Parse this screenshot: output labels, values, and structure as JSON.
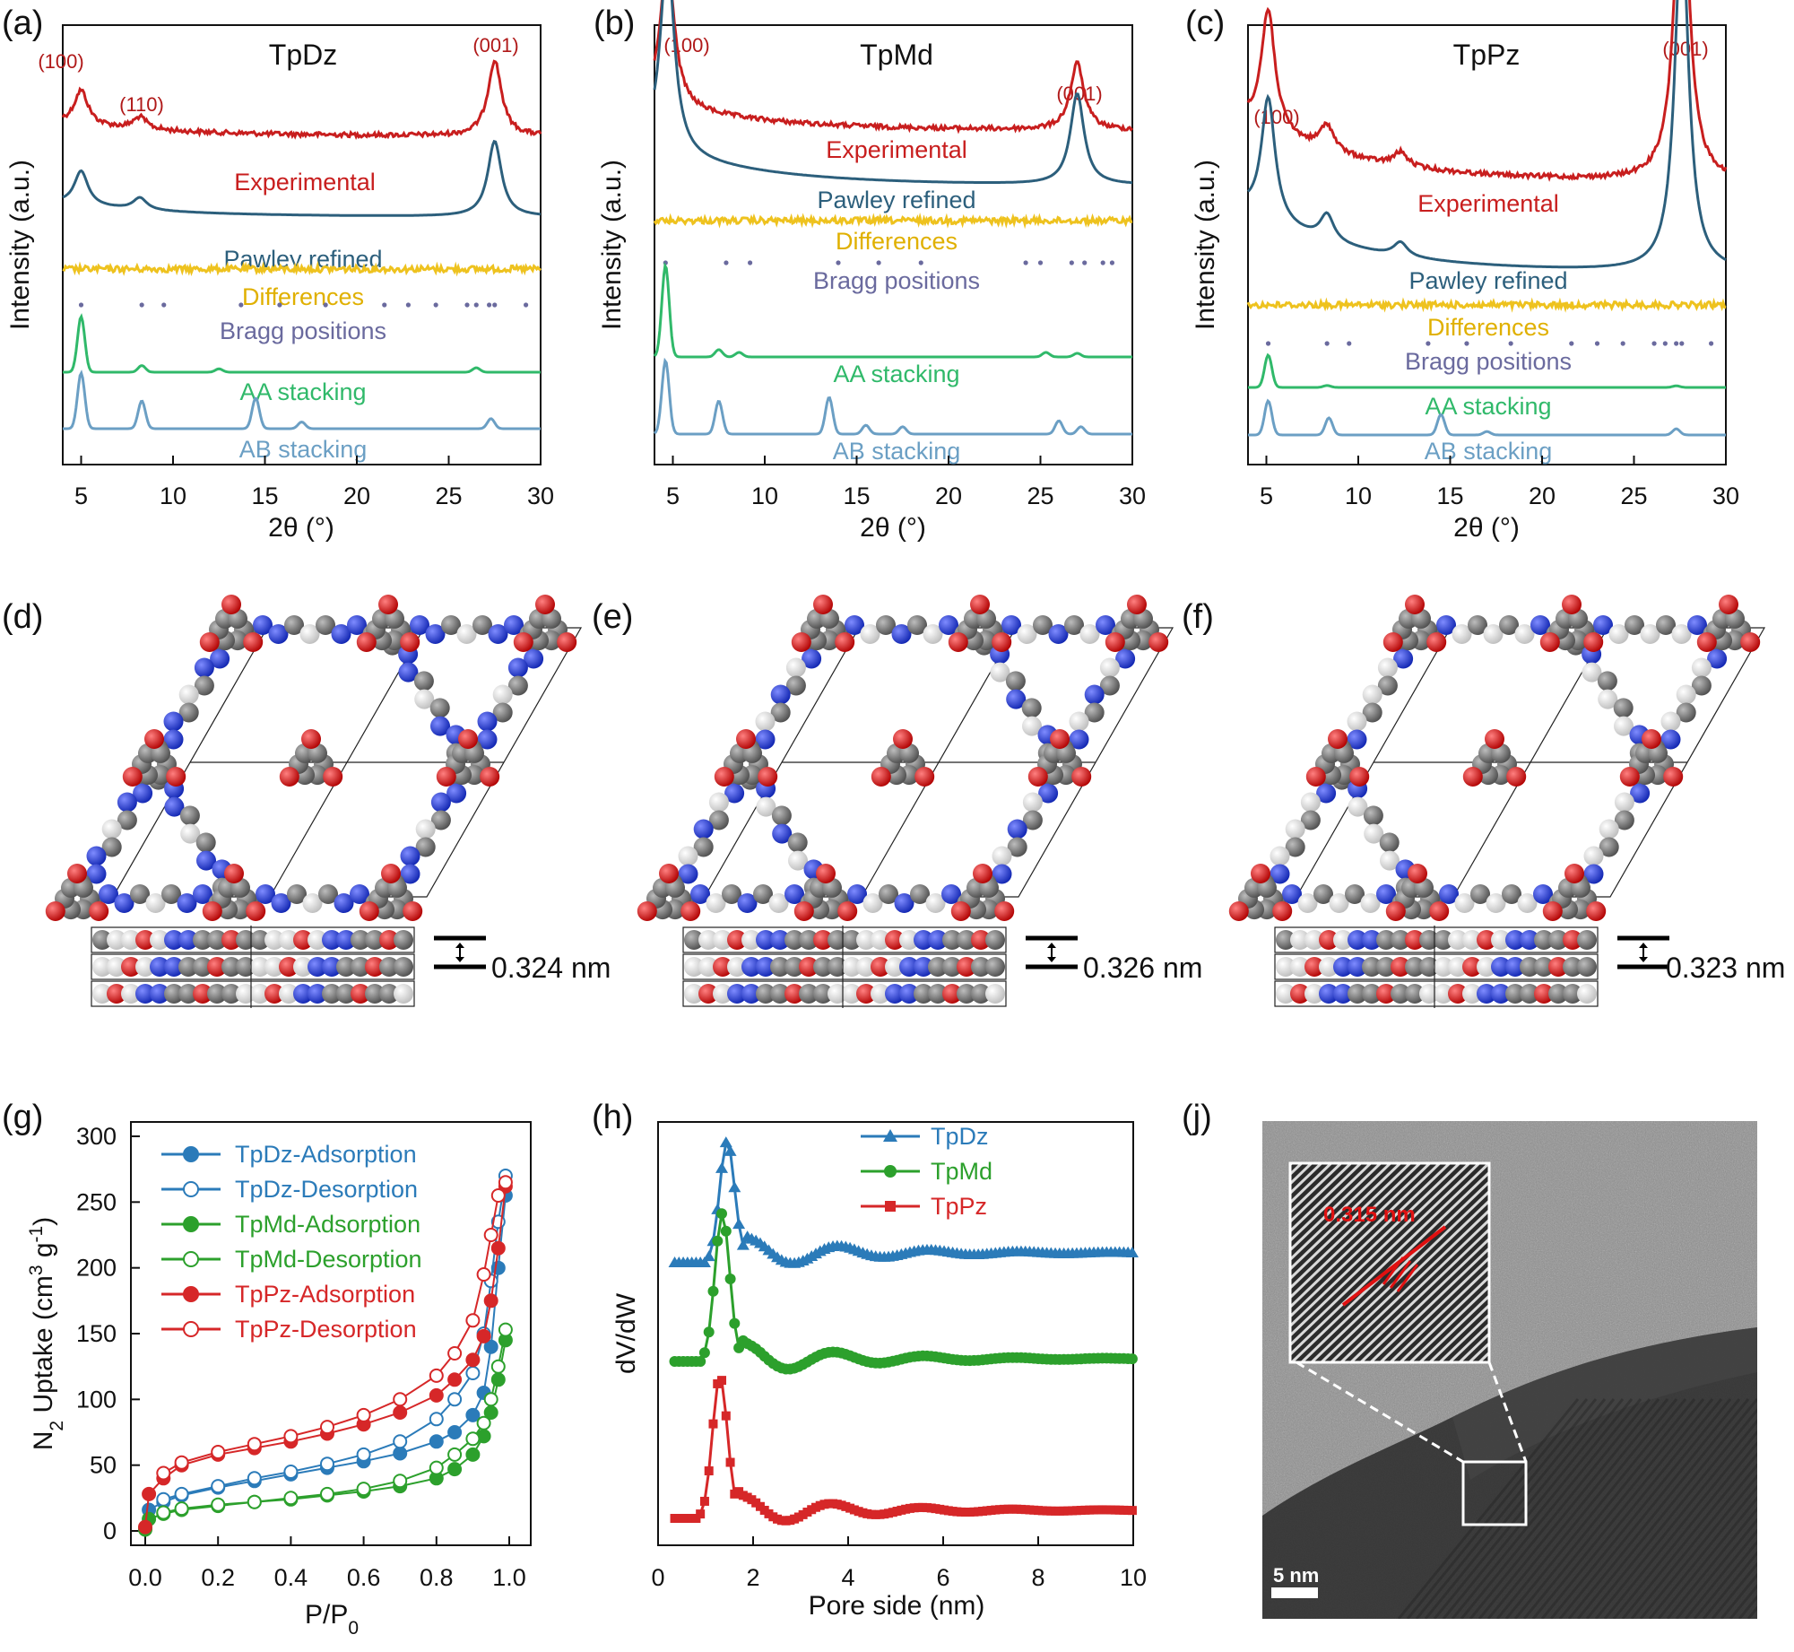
{
  "colors": {
    "experimental": "#c81e1e",
    "pawley": "#2c5f7c",
    "differences": "#eec21e",
    "bragg": "#6a6a9e",
    "aa": "#30b96a",
    "ab": "#6b9fc4",
    "tpdz": "#2b7bb9",
    "tpmd": "#2ca02c",
    "tppz": "#d62728",
    "carbon": "#666666",
    "nitrogen": "#1f3fd6",
    "oxygen": "#e01010",
    "hydrogen": "#f4f4f4"
  },
  "labels": {
    "a": "(a)",
    "b": "(b)",
    "c": "(c)",
    "d": "(d)",
    "e": "(e)",
    "f": "(f)",
    "g": "(g)",
    "h": "(h)",
    "j": "(j)"
  },
  "xrd_common": {
    "ylabel": "Intensity (a.u.)",
    "xlabel": "2θ (°)",
    "xlim": [
      4,
      30
    ],
    "xticks": [
      "5",
      "10",
      "15",
      "20",
      "25",
      "30"
    ],
    "tick_values": [
      5,
      10,
      15,
      20,
      25,
      30
    ]
  },
  "chart_data": [
    {
      "type": "line",
      "title": "TpDz",
      "xlabel": "2θ (°)",
      "ylabel": "Intensity (a.u.)",
      "xlim": [
        4,
        30
      ],
      "series_names": {
        "experimental": "Experimental",
        "pawley": "Pawley refined",
        "differences": "Differences",
        "bragg": "Bragg positions",
        "aa": "AA stacking",
        "ab": "AB stacking"
      },
      "peak_labels": [
        {
          "text": "(100)",
          "x": 5.0
        },
        {
          "text": "(110)",
          "x": 8.3
        },
        {
          "text": "(001)",
          "x": 27.5
        }
      ],
      "peaks": [
        {
          "x": 5.0,
          "h": 1.0
        },
        {
          "x": 8.2,
          "h": 0.35
        },
        {
          "x": 27.5,
          "h": 2.2
        }
      ],
      "aa_peaks": [
        {
          "x": 5.0,
          "h": 1.0
        },
        {
          "x": 8.3,
          "h": 0.12
        },
        {
          "x": 12.5,
          "h": 0.06
        },
        {
          "x": 26.5,
          "h": 0.08
        }
      ],
      "ab_peaks": [
        {
          "x": 5.0,
          "h": 1.0
        },
        {
          "x": 8.3,
          "h": 0.5
        },
        {
          "x": 14.5,
          "h": 0.55
        },
        {
          "x": 17.0,
          "h": 0.12
        },
        {
          "x": 27.3,
          "h": 0.18
        }
      ],
      "bragg_positions": [
        5.0,
        8.3,
        9.5,
        13.7,
        15.8,
        18.3,
        21.5,
        22.8,
        24.3,
        26.0,
        26.5,
        27.2,
        27.5,
        29.2
      ]
    },
    {
      "type": "line",
      "title": "TpMd",
      "xlabel": "2θ (°)",
      "ylabel": "Intensity (a.u.)",
      "xlim": [
        4,
        30
      ],
      "series_names": {
        "experimental": "Experimental",
        "pawley": "Pawley refined",
        "differences": "Differences",
        "bragg": "Bragg positions",
        "aa": "AA stacking",
        "ab": "AB stacking"
      },
      "peak_labels": [
        {
          "text": "(100)",
          "x": 4.7
        },
        {
          "text": "(001)",
          "x": 27.0
        }
      ],
      "peaks": [
        {
          "x": 4.7,
          "h": 1.0
        },
        {
          "x": 27.0,
          "h": 0.45
        }
      ],
      "aa_peaks": [
        {
          "x": 4.6,
          "h": 1.0
        },
        {
          "x": 7.5,
          "h": 0.08
        },
        {
          "x": 8.6,
          "h": 0.05
        },
        {
          "x": 25.3,
          "h": 0.05
        },
        {
          "x": 27.0,
          "h": 0.04
        }
      ],
      "ab_peaks": [
        {
          "x": 4.6,
          "h": 1.0
        },
        {
          "x": 7.5,
          "h": 0.45
        },
        {
          "x": 13.5,
          "h": 0.5
        },
        {
          "x": 15.5,
          "h": 0.12
        },
        {
          "x": 17.5,
          "h": 0.1
        },
        {
          "x": 26.0,
          "h": 0.18
        },
        {
          "x": 27.2,
          "h": 0.1
        }
      ],
      "bragg_positions": [
        4.6,
        7.9,
        9.2,
        14.0,
        16.2,
        18.5,
        24.2,
        25.0,
        26.7,
        27.4,
        28.4,
        28.9
      ]
    },
    {
      "type": "line",
      "title": "TpPz",
      "xlabel": "2θ (°)",
      "ylabel": "Intensity (a.u.)",
      "xlim": [
        4,
        30
      ],
      "series_names": {
        "experimental": "Experimental",
        "pawley": "Pawley refined",
        "differences": "Differences",
        "bragg": "Bragg positions",
        "aa": "AA stacking",
        "ab": "AB stacking"
      },
      "peak_labels": [
        {
          "text": "(100)",
          "x": 5.1
        },
        {
          "text": "(001)",
          "x": 27.6
        }
      ],
      "peaks": [
        {
          "x": 5.1,
          "h": 0.7
        },
        {
          "x": 8.3,
          "h": 0.15
        },
        {
          "x": 12.3,
          "h": 0.08
        },
        {
          "x": 27.6,
          "h": 2.0
        }
      ],
      "aa_peaks": [
        {
          "x": 5.1,
          "h": 1.0
        },
        {
          "x": 8.3,
          "h": 0.06
        },
        {
          "x": 27.3,
          "h": 0.05
        }
      ],
      "ab_peaks": [
        {
          "x": 5.1,
          "h": 1.0
        },
        {
          "x": 8.4,
          "h": 0.5
        },
        {
          "x": 14.5,
          "h": 0.6
        },
        {
          "x": 17.0,
          "h": 0.1
        },
        {
          "x": 27.3,
          "h": 0.18
        }
      ],
      "bragg_positions": [
        5.1,
        8.3,
        9.5,
        13.8,
        15.9,
        18.3,
        21.6,
        23.0,
        24.4,
        26.1,
        26.7,
        27.3,
        27.6,
        29.2
      ]
    },
    {
      "type": "scatter",
      "title": "",
      "xlabel": "P/P0",
      "ylabel": "N2 Uptake (cm3 g-1)",
      "xlim": [
        0,
        1.0
      ],
      "ylim": [
        0,
        300
      ],
      "xticks": [
        "0.0",
        "0.2",
        "0.4",
        "0.6",
        "0.8",
        "1.0"
      ],
      "xtick_values": [
        0.0,
        0.2,
        0.4,
        0.6,
        0.8,
        1.0
      ],
      "yticks": [
        "0",
        "50",
        "100",
        "150",
        "200",
        "250",
        "300"
      ],
      "ytick_values": [
        0,
        50,
        100,
        150,
        200,
        250,
        300
      ],
      "series": [
        {
          "name": "TpDz-Adsorption",
          "color": "#2b7bb9",
          "filled": true,
          "x": [
            0.0,
            0.01,
            0.05,
            0.1,
            0.2,
            0.3,
            0.4,
            0.5,
            0.6,
            0.7,
            0.8,
            0.85,
            0.9,
            0.93,
            0.95,
            0.97,
            0.99
          ],
          "values": [
            2,
            16,
            22,
            27,
            33,
            38,
            43,
            48,
            53,
            59,
            68,
            75,
            88,
            105,
            140,
            200,
            255
          ]
        },
        {
          "name": "TpDz-Desorption",
          "color": "#2b7bb9",
          "filled": false,
          "x": [
            0.99,
            0.97,
            0.95,
            0.93,
            0.9,
            0.85,
            0.8,
            0.7,
            0.6,
            0.5,
            0.4,
            0.3,
            0.2,
            0.1,
            0.05
          ],
          "values": [
            270,
            235,
            190,
            150,
            120,
            100,
            85,
            68,
            58,
            51,
            45,
            40,
            34,
            28,
            24
          ]
        },
        {
          "name": "TpMd-Adsorption",
          "color": "#2ca02c",
          "filled": true,
          "x": [
            0.0,
            0.01,
            0.05,
            0.1,
            0.2,
            0.3,
            0.4,
            0.5,
            0.6,
            0.7,
            0.8,
            0.85,
            0.9,
            0.93,
            0.95,
            0.97,
            0.99
          ],
          "values": [
            1,
            9,
            13,
            16,
            19,
            22,
            24,
            27,
            30,
            34,
            40,
            47,
            58,
            72,
            90,
            115,
            145
          ]
        },
        {
          "name": "TpMd-Desorption",
          "color": "#2ca02c",
          "filled": false,
          "x": [
            0.99,
            0.97,
            0.95,
            0.93,
            0.9,
            0.85,
            0.8,
            0.7,
            0.6,
            0.5,
            0.4,
            0.3,
            0.2,
            0.1,
            0.05
          ],
          "values": [
            153,
            125,
            100,
            82,
            70,
            58,
            48,
            38,
            32,
            28,
            25,
            22,
            20,
            17,
            14
          ]
        },
        {
          "name": "TpPz-Adsorption",
          "color": "#d62728",
          "filled": true,
          "x": [
            0.0,
            0.01,
            0.05,
            0.1,
            0.2,
            0.3,
            0.4,
            0.5,
            0.6,
            0.7,
            0.8,
            0.85,
            0.9,
            0.93,
            0.95,
            0.97,
            0.99
          ],
          "values": [
            3,
            28,
            40,
            50,
            58,
            63,
            68,
            74,
            81,
            90,
            103,
            115,
            130,
            148,
            175,
            215,
            262
          ]
        },
        {
          "name": "TpPz-Desorption",
          "color": "#d62728",
          "filled": false,
          "x": [
            0.99,
            0.97,
            0.95,
            0.93,
            0.9,
            0.85,
            0.8,
            0.7,
            0.6,
            0.5,
            0.4,
            0.3,
            0.2,
            0.1,
            0.05
          ],
          "values": [
            265,
            255,
            225,
            195,
            160,
            135,
            118,
            100,
            88,
            79,
            72,
            66,
            60,
            52,
            44
          ]
        }
      ]
    },
    {
      "type": "line",
      "title": "",
      "xlabel": "Pore side (nm)",
      "ylabel": "dV/dW",
      "xlim": [
        0,
        10
      ],
      "xticks": [
        "0",
        "2",
        "4",
        "6",
        "8",
        "10"
      ],
      "xtick_values": [
        0,
        2,
        4,
        6,
        8,
        10
      ],
      "series": [
        {
          "name": "TpDz",
          "color": "#2b7bb9",
          "marker": "triangle",
          "main_peak": 1.45,
          "osc": [
            3.0,
            4.9,
            6.8
          ]
        },
        {
          "name": "TpMd",
          "color": "#2ca02c",
          "marker": "circle",
          "main_peak": 1.35,
          "osc": [
            3.0,
            4.9,
            6.8
          ]
        },
        {
          "name": "TpPz",
          "color": "#d62728",
          "marker": "square",
          "main_peak": 1.3,
          "osc": [
            2.8,
            5.0,
            7.0
          ]
        }
      ]
    }
  ],
  "structures": [
    {
      "spacing_label": "0.324 nm"
    },
    {
      "spacing_label": "0.326 nm"
    },
    {
      "spacing_label": "0.323 nm"
    }
  ],
  "hrtem": {
    "lattice_label": "0.315 nm",
    "scalebar_label": "5 nm"
  }
}
